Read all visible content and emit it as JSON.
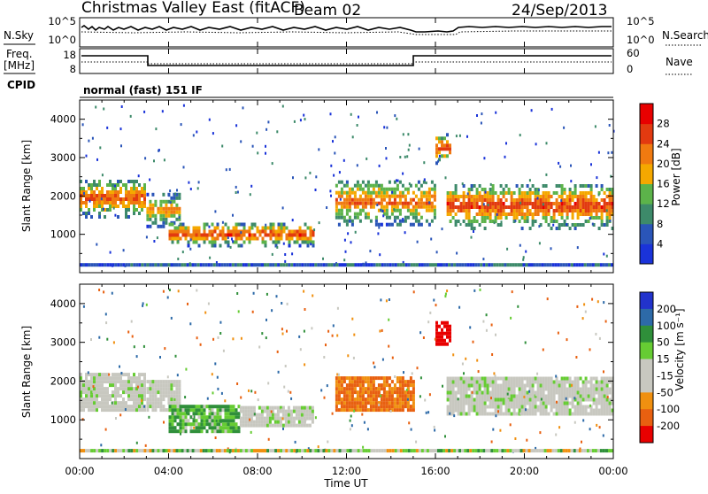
{
  "header": {
    "station": "Christmas Valley East (fitACF)",
    "beam": "Beam 02",
    "date": "24/Sep/2013"
  },
  "noise_panel": {
    "left_label": "N.Sky",
    "right_label": "N.Search",
    "left_ticks": [
      "10^5",
      "10^0"
    ],
    "right_ticks": [
      "10^5",
      "10^0"
    ]
  },
  "freq_panel": {
    "left_label_line1": "Freq.",
    "left_label_line2": "[MHz]",
    "right_label": "Nave",
    "left_ticks": [
      "18",
      "8"
    ],
    "right_ticks": [
      "60",
      "0"
    ]
  },
  "cpid": {
    "label": "CPID",
    "value": "normal (fast) 151 IF"
  },
  "x_axis": {
    "label": "Time UT",
    "ticks": [
      "00:00",
      "04:00",
      "08:00",
      "12:00",
      "16:00",
      "20:00",
      "00:00"
    ]
  },
  "colors": {
    "power": [
      "#1a33d9",
      "#2a55b8",
      "#3d8a6a",
      "#5cb34a",
      "#f5a800",
      "#f07a10",
      "#e23a10",
      "#e80000"
    ],
    "velocity": [
      "#2233cc",
      "#2d6aa8",
      "#2f8f3a",
      "#66cc33",
      "#c8c8c0",
      "#c8c8c0",
      "#f09010",
      "#e86010",
      "#e80000"
    ],
    "frame": "#000000"
  },
  "chart_data": [
    {
      "type": "heatmap",
      "name": "power-panel",
      "ylabel": "Slant Range [km]",
      "xlabel": "Time UT",
      "ylim": [
        0,
        4500
      ],
      "xlim": [
        0,
        24
      ],
      "yticks": [
        1000,
        2000,
        3000,
        4000
      ],
      "colorbar": {
        "label": "Power [dB]",
        "ticks": [
          4,
          8,
          12,
          16,
          20,
          24,
          28
        ]
      },
      "bands": [
        {
          "t0": 0.0,
          "t1": 2.9,
          "r0": 1500,
          "r1": 2500,
          "peak": 26
        },
        {
          "t0": 3.0,
          "t1": 4.5,
          "r0": 1250,
          "r1": 2100,
          "peak": 22
        },
        {
          "t0": 4.0,
          "t1": 10.5,
          "r0": 750,
          "r1": 1350,
          "peak": 27
        },
        {
          "t0": 11.5,
          "t1": 16.0,
          "r0": 1300,
          "r1": 2500,
          "peak": 24
        },
        {
          "t0": 16.0,
          "t1": 16.6,
          "r0": 2900,
          "r1": 3700,
          "peak": 26
        },
        {
          "t0": 16.5,
          "t1": 24.0,
          "r0": 1200,
          "r1": 2400,
          "peak": 27
        }
      ]
    },
    {
      "type": "heatmap",
      "name": "velocity-panel",
      "ylabel": "Slant Range [km]",
      "xlabel": "Time UT",
      "ylim": [
        0,
        4500
      ],
      "xlim": [
        0,
        24
      ],
      "yticks": [
        1000,
        2000,
        3000,
        4000
      ],
      "colorbar": {
        "label": "Velocity [m s⁻¹]",
        "ticks": [
          200,
          100,
          50,
          15,
          -15,
          -50,
          -100,
          -200
        ]
      },
      "bands": [
        {
          "t0": 0.0,
          "t1": 2.9,
          "r0": 1300,
          "r1": 2300,
          "v": 0
        },
        {
          "t0": 3.0,
          "t1": 4.5,
          "r0": 1300,
          "r1": 2100,
          "v": 0
        },
        {
          "t0": 4.0,
          "t1": 7.2,
          "r0": 750,
          "r1": 1400,
          "v": 30
        },
        {
          "t0": 7.2,
          "t1": 10.5,
          "r0": 900,
          "r1": 1400,
          "v": 0
        },
        {
          "t0": 11.5,
          "t1": 15.0,
          "r0": 1300,
          "r1": 2200,
          "v": -80
        },
        {
          "t0": 16.0,
          "t1": 16.6,
          "r0": 3000,
          "r1": 3600,
          "v": -200
        },
        {
          "t0": 16.5,
          "t1": 24.0,
          "r0": 1200,
          "r1": 2200,
          "v": 0
        }
      ]
    }
  ]
}
